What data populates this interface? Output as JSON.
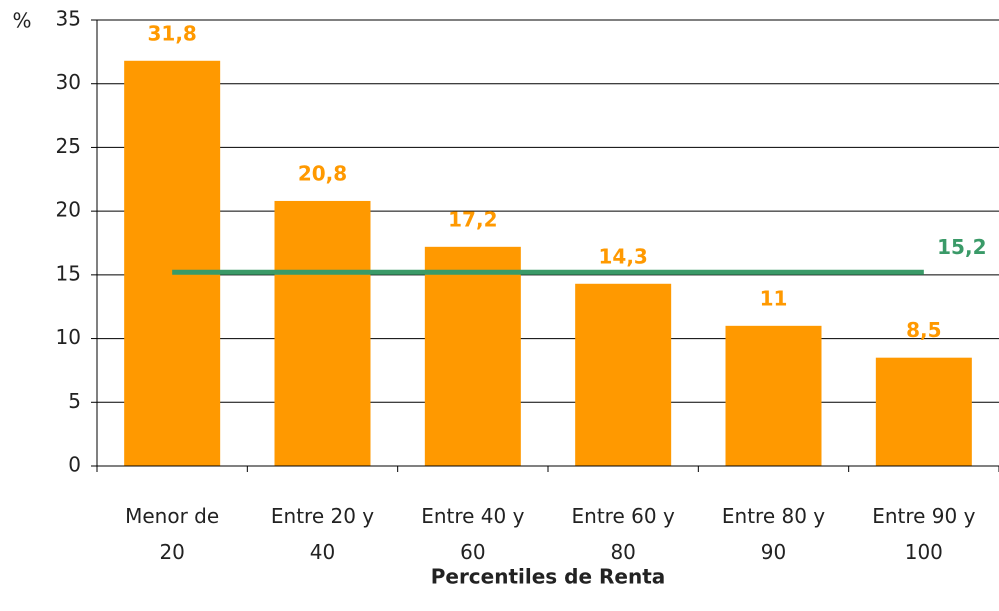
{
  "chart_data": {
    "type": "bar",
    "y_axis_label": "%",
    "x_axis_label": "Percentiles de Renta",
    "categories": [
      "Menor de 20",
      "Entre 20 y 40",
      "Entre 40 y 60",
      "Entre 60 y 80",
      "Entre 80 y 90",
      "Entre 90 y 100"
    ],
    "series": [
      {
        "type": "bar",
        "color": "#ff9900",
        "values": [
          31.8,
          20.8,
          17.2,
          14.3,
          11,
          8.5
        ],
        "value_labels": [
          "31,8",
          "20,8",
          "17,2",
          "14,3",
          "11",
          "8,5"
        ]
      },
      {
        "type": "line",
        "color": "#3a9a68",
        "values": [
          15.2,
          15.2,
          15.2,
          15.2,
          15.2,
          15.2
        ],
        "value_labels": [
          null,
          null,
          null,
          null,
          null,
          "15,2"
        ]
      }
    ],
    "ylim": [
      0,
      35
    ],
    "yticks": [
      0,
      5,
      10,
      15,
      20,
      25,
      30,
      35
    ],
    "grid": true
  }
}
